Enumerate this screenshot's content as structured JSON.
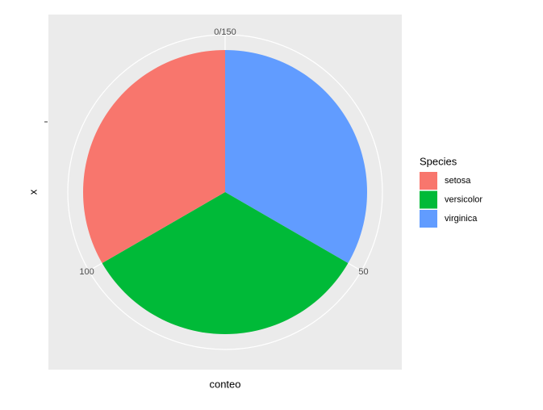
{
  "chart_data": {
    "type": "pie",
    "x_label": "conteo",
    "y_label": "x",
    "legend_title": "Species",
    "series": [
      {
        "name": "setosa",
        "color": "#F8766D",
        "values": [
          50
        ]
      },
      {
        "name": "versicolor",
        "color": "#00BA38",
        "values": [
          50
        ]
      },
      {
        "name": "virginica",
        "color": "#619CFF",
        "values": [
          50
        ]
      }
    ],
    "thetalim": [
      0,
      150
    ],
    "thetaticks": [
      {
        "value": 0,
        "label": "0/150"
      },
      50,
      100
    ],
    "grid": true,
    "legend": "right"
  }
}
